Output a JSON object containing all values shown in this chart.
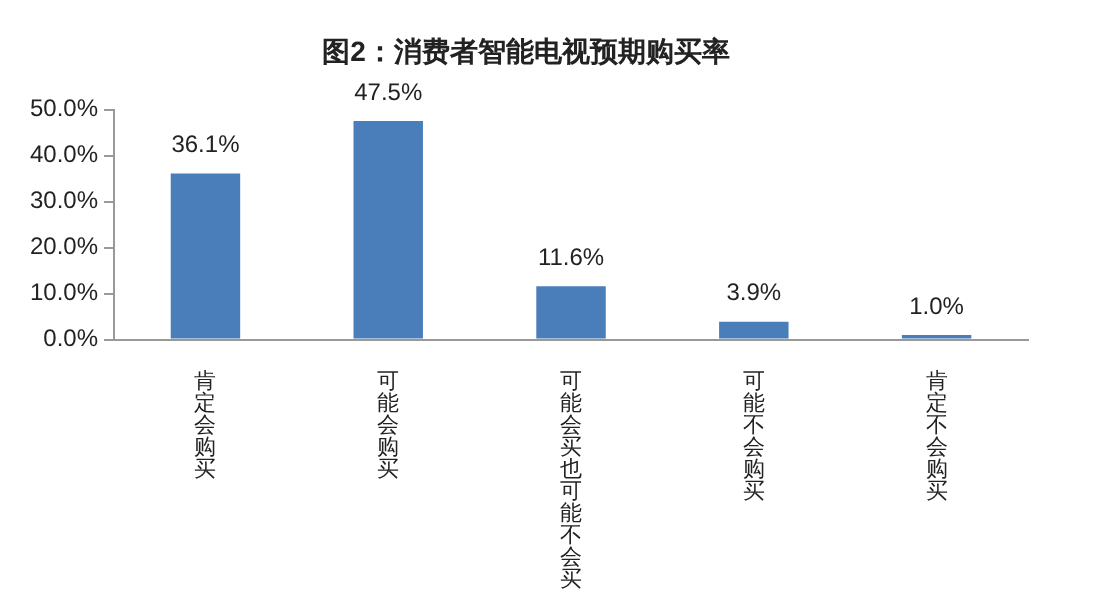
{
  "chart_data": {
    "type": "bar",
    "title": "图2：消费者智能电视预期购买率",
    "categories": [
      "肯定会购买",
      "可能会购买",
      "可能会买也可能不会买",
      "可能不会购买",
      "肯定不会购买"
    ],
    "values": [
      36.1,
      47.5,
      11.6,
      3.9,
      1.0
    ],
    "value_labels": [
      "36.1%",
      "47.5%",
      "11.6%",
      "3.9%",
      "1.0%"
    ],
    "color": "#4a7ebb",
    "ylim": [
      0,
      50
    ],
    "yticks": [
      {
        "value": 0,
        "label": "0.0%"
      },
      {
        "value": 10,
        "label": "10.0%"
      },
      {
        "value": 20,
        "label": "20.0%"
      },
      {
        "value": 30,
        "label": "30.0%"
      },
      {
        "value": 40,
        "label": "40.0%"
      },
      {
        "value": 50,
        "label": "50.0%"
      }
    ],
    "grid": false,
    "legend": false
  }
}
